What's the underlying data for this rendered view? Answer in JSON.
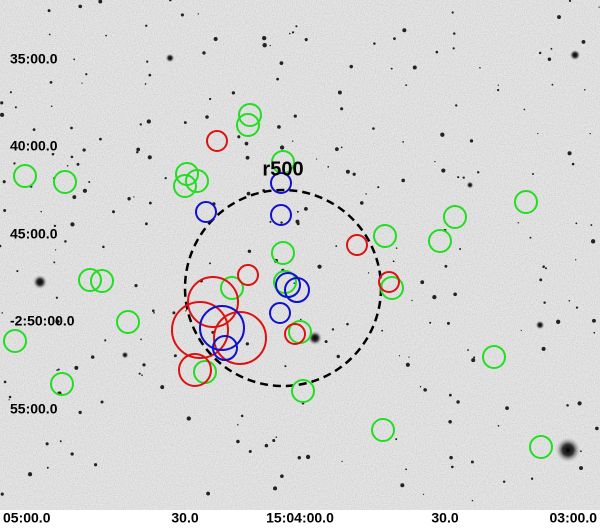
{
  "image": {
    "annotation": "r500",
    "y_labels": [
      "35:00.0",
      "40:00.0",
      "45:00.0",
      "-2:50:00.0",
      "55:00.0"
    ],
    "x_labels": [
      "05:00.0",
      "30.0",
      "15:04:00.0",
      "30.0",
      "03:00.0"
    ]
  }
}
